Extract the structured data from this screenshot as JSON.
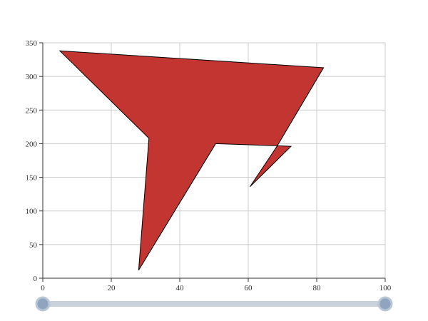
{
  "chart_data": {
    "type": "polygon",
    "title": "",
    "xlabel": "",
    "ylabel": "",
    "xlim": [
      0,
      100
    ],
    "ylim": [
      0,
      350
    ],
    "x_ticks": [
      0,
      20,
      40,
      60,
      80,
      100
    ],
    "y_ticks": [
      0,
      50,
      100,
      150,
      200,
      250,
      300,
      350
    ],
    "grid": true,
    "fill_color": "#c23531",
    "stroke_color": "#000000",
    "points": [
      {
        "x": 5,
        "y": 338
      },
      {
        "x": 82,
        "y": 313
      },
      {
        "x": 68.5,
        "y": 197
      },
      {
        "x": 72.5,
        "y": 196
      },
      {
        "x": 60.5,
        "y": 136
      },
      {
        "x": 68.5,
        "y": 197
      },
      {
        "x": 50.5,
        "y": 200
      },
      {
        "x": 28,
        "y": 12
      },
      {
        "x": 31,
        "y": 208
      }
    ],
    "slider": {
      "range": [
        0,
        100
      ],
      "start": 0,
      "end": 100
    }
  }
}
